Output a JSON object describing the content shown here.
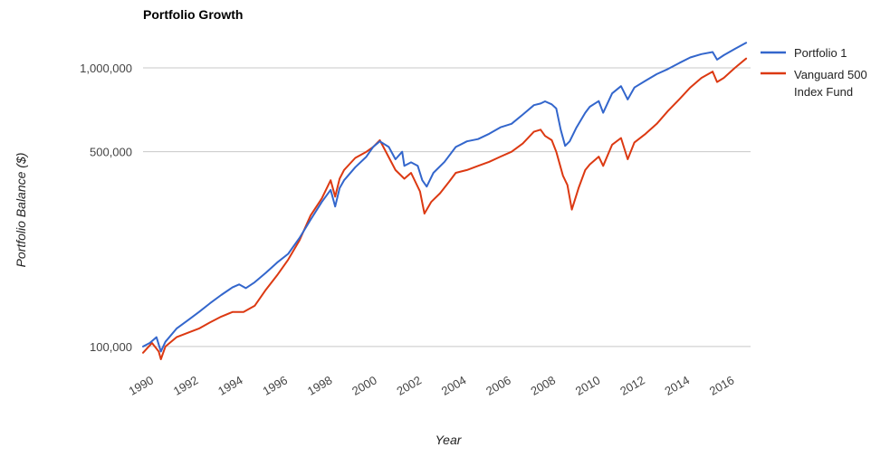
{
  "chart_data": {
    "type": "line",
    "title": "Portfolio Growth",
    "xlabel": "Year",
    "ylabel": "Portfolio Balance ($)",
    "y_scale": "log",
    "ylim": [
      88000,
      1400000
    ],
    "xlim": [
      1990.0,
      2017.2
    ],
    "y_ticks": [
      {
        "value": 100000,
        "label": "100,000"
      },
      {
        "value": 500000,
        "label": "500,000"
      },
      {
        "value": 1000000,
        "label": "1,000,000"
      }
    ],
    "x_ticks": [
      {
        "value": 1990,
        "label": "1990"
      },
      {
        "value": 1992,
        "label": "1992"
      },
      {
        "value": 1994,
        "label": "1994"
      },
      {
        "value": 1996,
        "label": "1996"
      },
      {
        "value": 1998,
        "label": "1998"
      },
      {
        "value": 2000,
        "label": "2000"
      },
      {
        "value": 2002,
        "label": "2002"
      },
      {
        "value": 2004,
        "label": "2004"
      },
      {
        "value": 2006,
        "label": "2006"
      },
      {
        "value": 2008,
        "label": "2008"
      },
      {
        "value": 2010,
        "label": "2010"
      },
      {
        "value": 2012,
        "label": "2012"
      },
      {
        "value": 2014,
        "label": "2014"
      },
      {
        "value": 2016,
        "label": "2016"
      }
    ],
    "grid": true,
    "legend_position": "right",
    "series": [
      {
        "name": "Portfolio 1",
        "color": "#3366cc",
        "points": [
          [
            1990.0,
            100000
          ],
          [
            1990.3,
            103000
          ],
          [
            1990.6,
            108000
          ],
          [
            1990.8,
            96000
          ],
          [
            1991.0,
            104000
          ],
          [
            1991.5,
            116000
          ],
          [
            1992.0,
            124000
          ],
          [
            1992.5,
            133000
          ],
          [
            1993.0,
            143000
          ],
          [
            1993.5,
            153000
          ],
          [
            1994.0,
            163000
          ],
          [
            1994.3,
            167000
          ],
          [
            1994.6,
            162000
          ],
          [
            1995.0,
            170000
          ],
          [
            1995.5,
            184000
          ],
          [
            1996.0,
            200000
          ],
          [
            1996.5,
            215000
          ],
          [
            1997.0,
            245000
          ],
          [
            1997.5,
            285000
          ],
          [
            1998.0,
            330000
          ],
          [
            1998.4,
            365000
          ],
          [
            1998.6,
            318000
          ],
          [
            1998.8,
            370000
          ],
          [
            1999.0,
            395000
          ],
          [
            1999.5,
            440000
          ],
          [
            2000.0,
            480000
          ],
          [
            2000.3,
            520000
          ],
          [
            2000.6,
            545000
          ],
          [
            2001.0,
            520000
          ],
          [
            2001.3,
            470000
          ],
          [
            2001.6,
            500000
          ],
          [
            2001.7,
            445000
          ],
          [
            2002.0,
            458000
          ],
          [
            2002.3,
            445000
          ],
          [
            2002.5,
            395000
          ],
          [
            2002.7,
            375000
          ],
          [
            2003.0,
            420000
          ],
          [
            2003.5,
            460000
          ],
          [
            2004.0,
            520000
          ],
          [
            2004.5,
            545000
          ],
          [
            2005.0,
            555000
          ],
          [
            2005.5,
            580000
          ],
          [
            2006.0,
            612000
          ],
          [
            2006.5,
            630000
          ],
          [
            2007.0,
            680000
          ],
          [
            2007.5,
            735000
          ],
          [
            2007.8,
            745000
          ],
          [
            2008.0,
            758000
          ],
          [
            2008.3,
            740000
          ],
          [
            2008.5,
            715000
          ],
          [
            2008.7,
            600000
          ],
          [
            2008.9,
            525000
          ],
          [
            2009.1,
            545000
          ],
          [
            2009.4,
            610000
          ],
          [
            2009.8,
            690000
          ],
          [
            2010.0,
            725000
          ],
          [
            2010.4,
            760000
          ],
          [
            2010.6,
            690000
          ],
          [
            2011.0,
            810000
          ],
          [
            2011.4,
            860000
          ],
          [
            2011.7,
            770000
          ],
          [
            2012.0,
            850000
          ],
          [
            2012.5,
            900000
          ],
          [
            2013.0,
            950000
          ],
          [
            2013.5,
            990000
          ],
          [
            2014.0,
            1040000
          ],
          [
            2014.5,
            1090000
          ],
          [
            2015.0,
            1120000
          ],
          [
            2015.5,
            1140000
          ],
          [
            2015.7,
            1070000
          ],
          [
            2016.0,
            1110000
          ],
          [
            2016.5,
            1170000
          ],
          [
            2017.0,
            1230000
          ]
        ]
      },
      {
        "name": "Vanguard 500 Index Fund",
        "color": "#dc3912",
        "points": [
          [
            1990.0,
            95000
          ],
          [
            1990.4,
            103000
          ],
          [
            1990.7,
            96000
          ],
          [
            1990.8,
            90000
          ],
          [
            1991.0,
            100000
          ],
          [
            1991.5,
            108000
          ],
          [
            1992.0,
            112000
          ],
          [
            1992.5,
            116000
          ],
          [
            1993.0,
            122000
          ],
          [
            1993.5,
            128000
          ],
          [
            1994.0,
            133000
          ],
          [
            1994.5,
            133000
          ],
          [
            1995.0,
            140000
          ],
          [
            1995.5,
            160000
          ],
          [
            1996.0,
            180000
          ],
          [
            1996.5,
            205000
          ],
          [
            1997.0,
            240000
          ],
          [
            1997.5,
            295000
          ],
          [
            1998.0,
            340000
          ],
          [
            1998.4,
            395000
          ],
          [
            1998.6,
            345000
          ],
          [
            1998.8,
            400000
          ],
          [
            1999.0,
            430000
          ],
          [
            1999.5,
            475000
          ],
          [
            2000.0,
            500000
          ],
          [
            2000.3,
            520000
          ],
          [
            2000.6,
            550000
          ],
          [
            2000.9,
            495000
          ],
          [
            2001.3,
            430000
          ],
          [
            2001.7,
            400000
          ],
          [
            2002.0,
            420000
          ],
          [
            2002.4,
            360000
          ],
          [
            2002.6,
            300000
          ],
          [
            2002.9,
            330000
          ],
          [
            2003.3,
            355000
          ],
          [
            2003.7,
            390000
          ],
          [
            2004.0,
            420000
          ],
          [
            2004.5,
            430000
          ],
          [
            2005.0,
            445000
          ],
          [
            2005.5,
            460000
          ],
          [
            2006.0,
            480000
          ],
          [
            2006.5,
            500000
          ],
          [
            2007.0,
            535000
          ],
          [
            2007.5,
            590000
          ],
          [
            2007.8,
            600000
          ],
          [
            2008.0,
            570000
          ],
          [
            2008.3,
            550000
          ],
          [
            2008.5,
            500000
          ],
          [
            2008.8,
            410000
          ],
          [
            2009.0,
            380000
          ],
          [
            2009.2,
            310000
          ],
          [
            2009.5,
            370000
          ],
          [
            2009.8,
            430000
          ],
          [
            2010.0,
            450000
          ],
          [
            2010.4,
            480000
          ],
          [
            2010.6,
            445000
          ],
          [
            2011.0,
            530000
          ],
          [
            2011.4,
            560000
          ],
          [
            2011.7,
            470000
          ],
          [
            2012.0,
            540000
          ],
          [
            2012.5,
            580000
          ],
          [
            2013.0,
            630000
          ],
          [
            2013.5,
            700000
          ],
          [
            2014.0,
            770000
          ],
          [
            2014.5,
            850000
          ],
          [
            2015.0,
            920000
          ],
          [
            2015.5,
            970000
          ],
          [
            2015.7,
            890000
          ],
          [
            2016.0,
            920000
          ],
          [
            2016.5,
            1000000
          ],
          [
            2017.0,
            1080000
          ]
        ]
      }
    ]
  }
}
